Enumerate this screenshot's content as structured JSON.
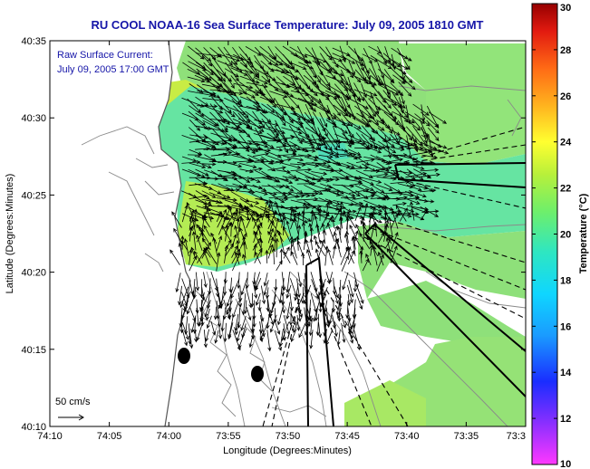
{
  "chart_data": {
    "type": "heatmap",
    "title": "RU COOL  NOAA-16  Sea Surface Temperature:  July 09, 2005 1810 GMT",
    "xlabel": "Longitude (Degrees:Minutes)",
    "ylabel": "Latitude (Degrees:Minutes)",
    "x_ticks": [
      "74:10",
      "74:05",
      "74:00",
      "73:55",
      "73:50",
      "73:45",
      "73:40",
      "73:35",
      "73:3"
    ],
    "y_ticks": [
      "40:10",
      "40:15",
      "40:20",
      "40:25",
      "40:30",
      "40:35"
    ],
    "xlim": [
      -74.1667,
      -73.5
    ],
    "ylim": [
      40.1667,
      40.5833
    ],
    "annotations": [
      "Raw Surface Current:",
      "July 09, 2005 17:00 GMT"
    ],
    "scale_label": "50 cm/s",
    "colorbar": {
      "label": "Temperature (°C)",
      "min": 10,
      "max": 30,
      "ticks": [
        "10",
        "12",
        "14",
        "16",
        "18",
        "20",
        "22",
        "24",
        "26",
        "28",
        "30"
      ]
    },
    "sst_range_c": [
      19,
      23
    ],
    "grid": false
  },
  "colors": {
    "title": "#1515a8",
    "annotation": "#1515a8",
    "vectors": "#000000",
    "contours": "#8a8a8a"
  }
}
